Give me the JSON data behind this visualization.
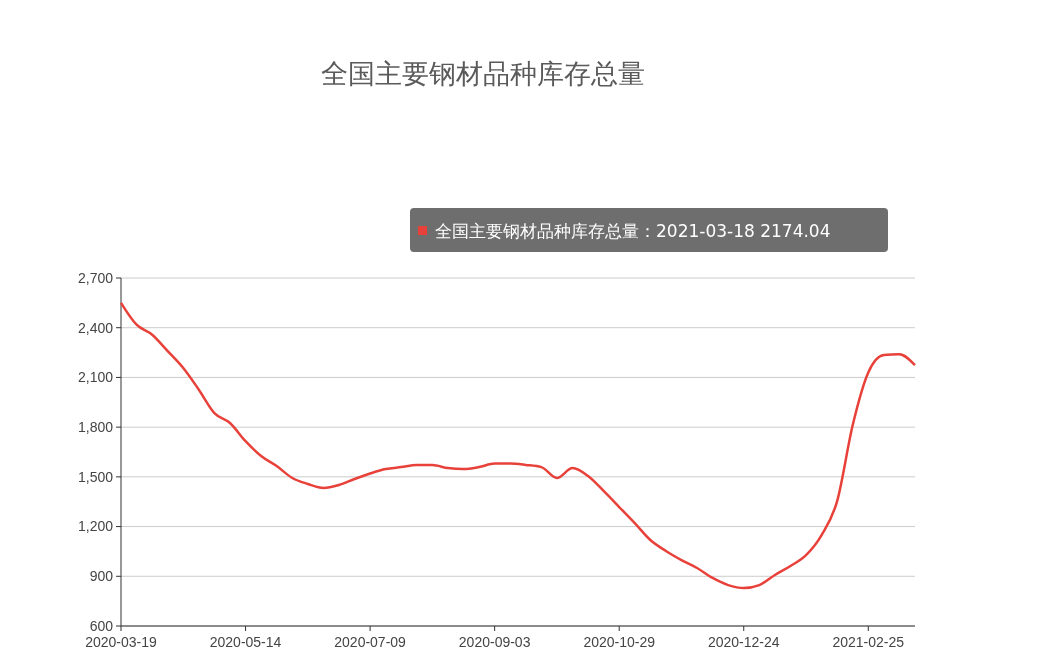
{
  "chart_data": {
    "type": "line",
    "title": "全国主要钢材品种库存总量",
    "categories": [
      "2020-03-19",
      null,
      null,
      null,
      null,
      null,
      null,
      null,
      "2020-05-14",
      null,
      null,
      null,
      null,
      null,
      null,
      null,
      "2020-07-09",
      null,
      null,
      null,
      null,
      null,
      null,
      null,
      "2020-09-03",
      null,
      null,
      null,
      null,
      null,
      null,
      null,
      "2020-10-29",
      null,
      null,
      null,
      null,
      null,
      null,
      null,
      "2020-12-24",
      null,
      null,
      null,
      null,
      null,
      null,
      null,
      "2021-02-25",
      null,
      null,
      null
    ],
    "series": [
      {
        "color": "#e8413a",
        "values": [
          2550,
          2418,
          2358,
          2259,
          2157,
          2026,
          1885,
          1825,
          1715,
          1626,
          1565,
          1493,
          1457,
          1433,
          1451,
          1487,
          1520,
          1547,
          1559,
          1571,
          1571,
          1553,
          1547,
          1559,
          1580,
          1580,
          1572,
          1559,
          1493,
          1553,
          1505,
          1415,
          1318,
          1221,
          1119,
          1053,
          998,
          950,
          890,
          847,
          829,
          847,
          908,
          962,
          1028,
          1149,
          1354,
          1813,
          2130,
          2235,
          2240,
          2174.04
        ]
      }
    ],
    "ylim": [
      600,
      2700
    ],
    "yticks": [
      {
        "value": 600,
        "label": "600"
      },
      {
        "value": 900,
        "label": "900"
      },
      {
        "value": 1200,
        "label": "1,200"
      },
      {
        "value": 1500,
        "label": "1,500"
      },
      {
        "value": 1800,
        "label": "1,800"
      },
      {
        "value": 2100,
        "label": "2,100"
      },
      {
        "value": 2400,
        "label": "2,400"
      },
      {
        "value": 2700,
        "label": "2,700"
      }
    ],
    "grid": "y",
    "line_style": "solid",
    "annotations": [
      "全国主要钢材品种库存总量：2021-03-18 2174.04"
    ]
  }
}
